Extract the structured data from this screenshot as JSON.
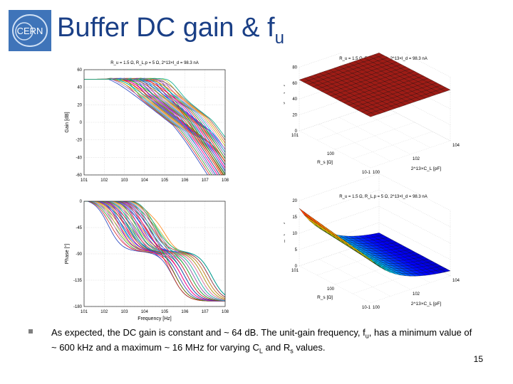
{
  "slide": {
    "title_main": "Buffer DC gain & f",
    "title_sub": "u",
    "logo_text": "CERN",
    "page_number": "15"
  },
  "caption": {
    "part1": "As expected, the DC gain is constant and ~ 64 dB. The unit-gain frequency, f",
    "sub_u": "u",
    "part2": ", has a minimum value of ~ 600 kHz and a maximum ~ 16 MHz for varying C",
    "sub_L": "L",
    "part3": " and R",
    "sub_s": "s",
    "part4": " values."
  },
  "chart_data": [
    {
      "type": "line",
      "title": "R_u = 1.5 Ω, R_L,p = 5 Ω, 2^13×I_d = 98.3 nA",
      "ylabel": "Gain [dB]",
      "y_ticks": [
        "60",
        "40",
        "20",
        "0",
        "-20",
        "-40",
        "-60"
      ],
      "x_ticks": [
        "10^1",
        "10^2",
        "10^3",
        "10^4",
        "10^5",
        "10^6",
        "10^7",
        "10^8"
      ],
      "ylim": [
        -60,
        60
      ],
      "x_scale": "log",
      "grid": true
    },
    {
      "type": "line",
      "title": "",
      "ylabel": "Phase [°]",
      "xlabel": "Frequency [Hz]",
      "y_ticks": [
        "0",
        "-45",
        "-90",
        "-135",
        "-180"
      ],
      "x_ticks": [
        "10^1",
        "10^2",
        "10^3",
        "10^4",
        "10^5",
        "10^6",
        "10^7",
        "10^8"
      ],
      "ylim": [
        -180,
        0
      ],
      "x_scale": "log",
      "grid": true
    },
    {
      "type": "surface",
      "title": "R_u = 1.5 Ω, R_L,p = 5 Ω, 2^13×I_d = 98.3 nA",
      "zlabel": "DC gain [dB]",
      "z_ticks": [
        "80",
        "60",
        "40",
        "20",
        "0"
      ],
      "xlabel": "R_s [Ω]",
      "ylabel": "2^13×C_L [pF]",
      "x_ticks": [
        "10^1",
        "10^0",
        "10^-1"
      ],
      "y_ticks": [
        "10^4",
        "10^2",
        "10^0"
      ],
      "z_value": 64
    },
    {
      "type": "surface",
      "title": "R_u = 1.5 Ω, R_L,p = 5 Ω, 2^13×I_d = 98.3 nA",
      "zlabel": "f_u [MHz]",
      "z_ticks": [
        "20",
        "15",
        "10",
        "5",
        "0"
      ],
      "xlabel": "R_s [Ω]",
      "ylabel": "2^13×C_L [pF]",
      "x_ticks": [
        "10^1",
        "10^0",
        "10^-1"
      ],
      "y_ticks": [
        "10^4",
        "10^2",
        "10^0"
      ],
      "zlim": [
        0,
        20
      ]
    }
  ]
}
